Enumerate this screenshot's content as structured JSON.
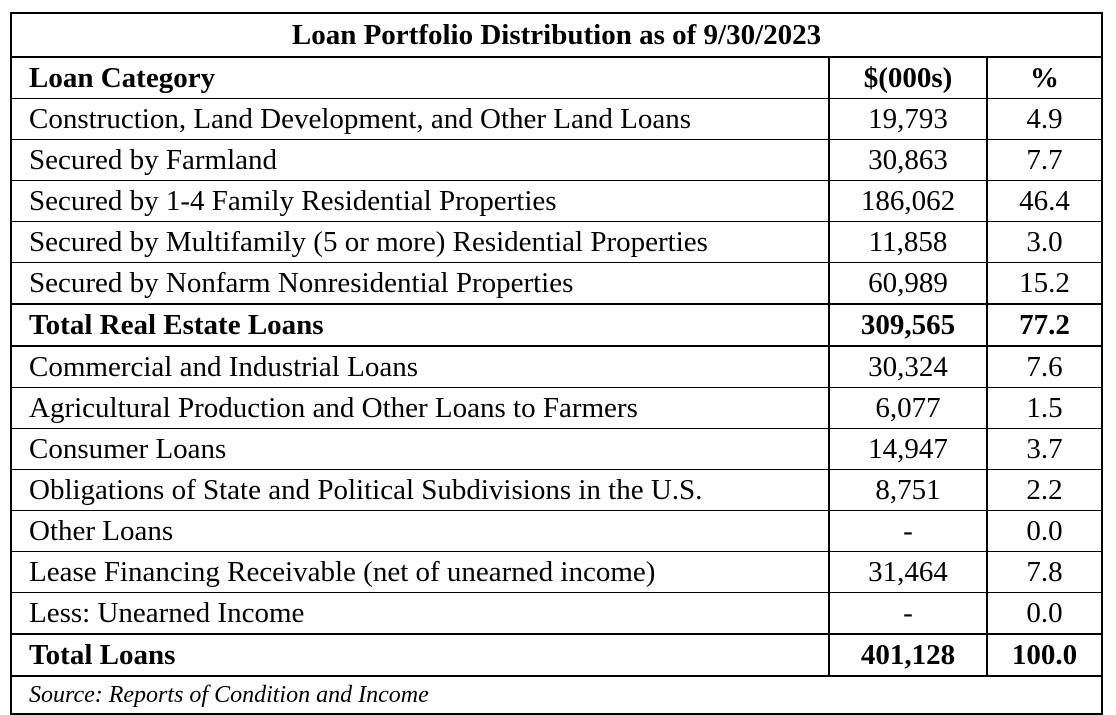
{
  "table": {
    "title": "Loan Portfolio Distribution as of 9/30/2023",
    "headers": {
      "category": "Loan Category",
      "amount": "$(000s)",
      "percent": "%"
    },
    "rows": [
      {
        "category": "Construction, Land Development, and Other Land Loans",
        "amount": "19,793",
        "percent": "4.9"
      },
      {
        "category": "Secured by Farmland",
        "amount": "30,863",
        "percent": "7.7"
      },
      {
        "category": "Secured by 1-4 Family Residential Properties",
        "amount": "186,062",
        "percent": "46.4"
      },
      {
        "category": "Secured by Multifamily (5 or more) Residential Properties",
        "amount": "11,858",
        "percent": "3.0"
      },
      {
        "category": "Secured by Nonfarm Nonresidential Properties",
        "amount": "60,989",
        "percent": "15.2"
      },
      {
        "category": "Total Real Estate Loans",
        "amount": "309,565",
        "percent": "77.2"
      },
      {
        "category": "Commercial and Industrial Loans",
        "amount": "30,324",
        "percent": "7.6"
      },
      {
        "category": "Agricultural Production and Other Loans to Farmers",
        "amount": "6,077",
        "percent": "1.5"
      },
      {
        "category": "Consumer Loans",
        "amount": "14,947",
        "percent": "3.7"
      },
      {
        "category": "Obligations of State and Political Subdivisions in the U.S.",
        "amount": "8,751",
        "percent": "2.2"
      },
      {
        "category": "Other Loans",
        "amount": "-",
        "percent": "0.0"
      },
      {
        "category": "Lease Financing Receivable (net of unearned income)",
        "amount": "31,464",
        "percent": "7.8"
      },
      {
        "category": "Less: Unearned Income",
        "amount": "-",
        "percent": "0.0"
      },
      {
        "category": "Total Loans",
        "amount": "401,128",
        "percent": "100.0"
      }
    ],
    "source": "Source: Reports of Condition and Income"
  }
}
